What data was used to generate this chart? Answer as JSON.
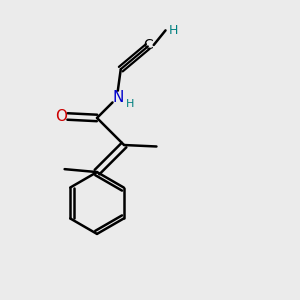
{
  "background_color": "#ebebeb",
  "atom_colors": {
    "C": "#000000",
    "N": "#0000cc",
    "O": "#cc0000",
    "H": "#008080"
  },
  "figsize": [
    3.0,
    3.0
  ],
  "dpi": 100
}
